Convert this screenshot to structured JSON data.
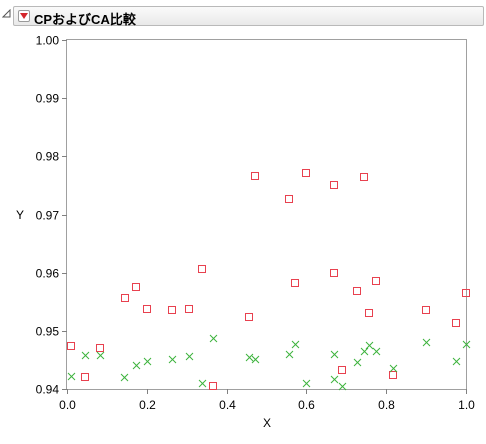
{
  "header": {
    "title": "CPおよびCA比較"
  },
  "colors": {
    "square_series": "#e8414f",
    "x_series": "#3cb33c",
    "grid": "#e6e6e6"
  },
  "chart_data": {
    "type": "scatter",
    "title": "",
    "xlabel": "X",
    "ylabel": "Y",
    "xlim": [
      0,
      1
    ],
    "ylim": [
      0.94,
      1.0
    ],
    "x_ticks": [
      0.0,
      0.2,
      0.4,
      0.6,
      0.8,
      1.0
    ],
    "x_tick_labels": [
      "0.0",
      "0.2",
      "0.4",
      "0.6",
      "0.8",
      "1.0"
    ],
    "y_ticks": [
      0.94,
      0.95,
      0.96,
      0.97,
      0.98,
      0.99,
      1.0
    ],
    "y_tick_labels": [
      "0.94",
      "0.95",
      "0.96",
      "0.97",
      "0.98",
      "0.99",
      "1.00"
    ],
    "grid": false,
    "series": [
      {
        "marker": "square",
        "color": "#e8414f",
        "points": [
          [
            0.01,
            0.9474
          ],
          [
            0.045,
            0.9421
          ],
          [
            0.082,
            0.9471
          ],
          [
            0.146,
            0.9556
          ],
          [
            0.173,
            0.9576
          ],
          [
            0.2,
            0.9538
          ],
          [
            0.263,
            0.9535
          ],
          [
            0.306,
            0.9538
          ],
          [
            0.339,
            0.9606
          ],
          [
            0.366,
            0.9406
          ],
          [
            0.456,
            0.9523
          ],
          [
            0.472,
            0.9767
          ],
          [
            0.556,
            0.9727
          ],
          [
            0.571,
            0.9582
          ],
          [
            0.6,
            0.9771
          ],
          [
            0.67,
            0.975
          ],
          [
            0.67,
            0.96
          ],
          [
            0.69,
            0.9432
          ],
          [
            0.728,
            0.9568
          ],
          [
            0.744,
            0.9765
          ],
          [
            0.756,
            0.953
          ],
          [
            0.774,
            0.9586
          ],
          [
            0.818,
            0.9424
          ],
          [
            0.9,
            0.9535
          ],
          [
            0.975,
            0.9513
          ],
          [
            1.0,
            0.9565
          ]
        ]
      },
      {
        "marker": "x",
        "color": "#3cb33c",
        "points": [
          [
            0.01,
            0.9423
          ],
          [
            0.045,
            0.9458
          ],
          [
            0.082,
            0.9458
          ],
          [
            0.142,
            0.942
          ],
          [
            0.173,
            0.9442
          ],
          [
            0.2,
            0.9448
          ],
          [
            0.263,
            0.9452
          ],
          [
            0.306,
            0.9457
          ],
          [
            0.339,
            0.941
          ],
          [
            0.366,
            0.9487
          ],
          [
            0.456,
            0.9455
          ],
          [
            0.472,
            0.9452
          ],
          [
            0.556,
            0.9461
          ],
          [
            0.571,
            0.9478
          ],
          [
            0.6,
            0.941
          ],
          [
            0.67,
            0.9417
          ],
          [
            0.67,
            0.946
          ],
          [
            0.69,
            0.9405
          ],
          [
            0.728,
            0.9447
          ],
          [
            0.744,
            0.9465
          ],
          [
            0.756,
            0.9476
          ],
          [
            0.774,
            0.9465
          ],
          [
            0.818,
            0.9436
          ],
          [
            0.9,
            0.948
          ],
          [
            0.975,
            0.9448
          ],
          [
            1.0,
            0.9477
          ]
        ]
      }
    ]
  }
}
